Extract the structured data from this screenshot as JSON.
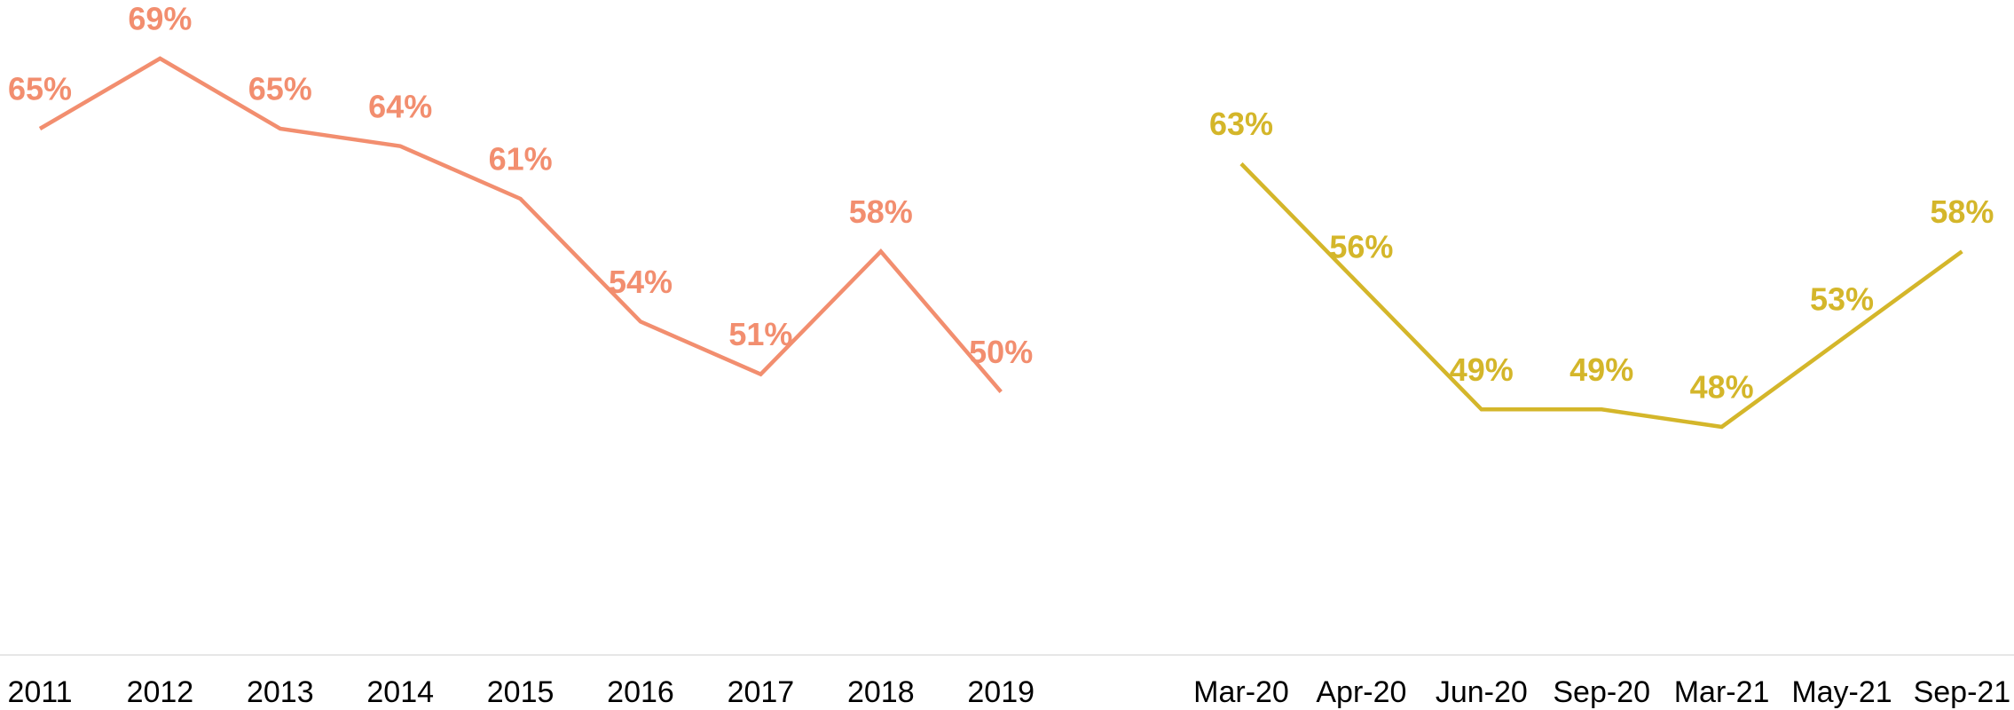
{
  "chart_data": {
    "type": "line",
    "categories": [
      "2011",
      "2012",
      "2013",
      "2014",
      "2015",
      "2016",
      "2017",
      "2018",
      "2019",
      null,
      "Mar-20",
      "Apr-20",
      "Jun-20",
      "Sep-20",
      "Mar-21",
      "May-21",
      "Sep-21"
    ],
    "series": [
      {
        "color": "#f28e6f",
        "values": [
          65,
          69,
          65,
          64,
          61,
          54,
          51,
          58,
          50,
          null,
          null,
          null,
          null,
          null,
          null,
          null,
          null
        ],
        "value_labels": [
          "65%",
          "69%",
          "65%",
          "64%",
          "61%",
          "54%",
          "51%",
          "58%",
          "50%",
          null,
          null,
          null,
          null,
          null,
          null,
          null,
          null
        ]
      },
      {
        "color": "#d4b62a",
        "values": [
          null,
          null,
          null,
          null,
          null,
          null,
          null,
          null,
          null,
          null,
          63,
          56,
          49,
          49,
          48,
          53,
          58
        ],
        "value_labels": [
          null,
          null,
          null,
          null,
          null,
          null,
          null,
          null,
          null,
          null,
          "63%",
          "56%",
          "49%",
          "49%",
          "48%",
          "53%",
          "58%"
        ]
      }
    ],
    "ylim": [
      35,
      72
    ]
  }
}
